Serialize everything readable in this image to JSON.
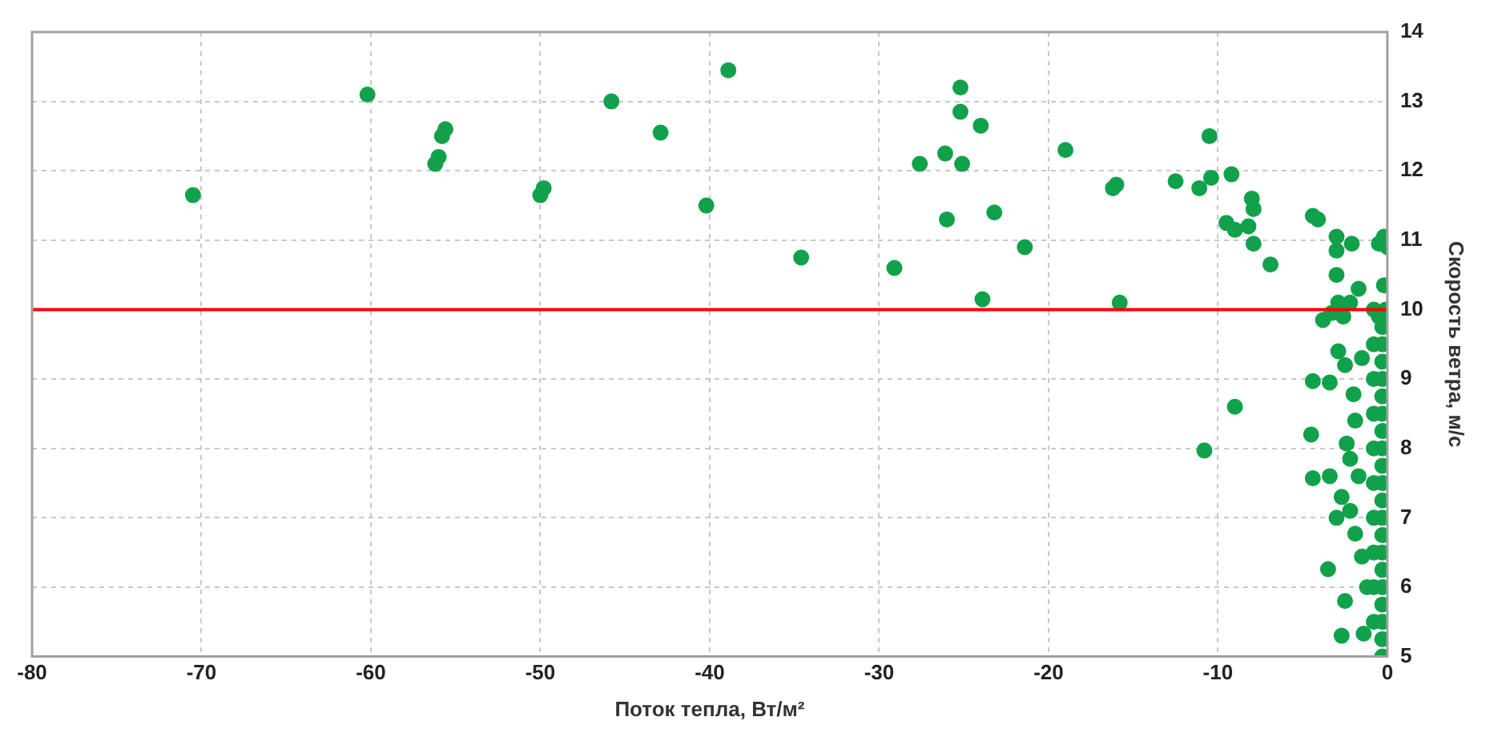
{
  "chart_data": {
    "type": "scatter",
    "xlabel": "Поток тепла, Вт/м²",
    "ylabel": "Скорость ветра, м/с",
    "xlim": [
      -80,
      0
    ],
    "xticks": [
      -80,
      -70,
      -60,
      -50,
      -40,
      -30,
      -20,
      -10,
      0
    ],
    "ylim": [
      5,
      14
    ],
    "yticks": [
      5,
      6,
      7,
      8,
      9,
      10,
      11,
      12,
      13,
      14
    ],
    "grid": true,
    "marker": "circle",
    "legend": false,
    "ref_lines": [
      {
        "axis": "y",
        "value": 10,
        "color": "#ff0000"
      }
    ],
    "series": [
      {
        "color": "#12a14b",
        "x": [
          -70.5,
          -60.2,
          -56.2,
          -56,
          -55.8,
          -55.6,
          -50,
          -49.8,
          -45.8,
          -42.9,
          -40.2,
          -38.9,
          -34.6,
          -29.1,
          -27.6,
          -26.1,
          -26,
          -25.2,
          -25.2,
          -25.1,
          -24,
          -23.9,
          -23.2,
          -21.4,
          -19,
          -16.2,
          -16,
          -15.8,
          -12.5,
          -11.1,
          -10.5,
          -10.4,
          -9.2,
          -9.5,
          -9,
          -8.2,
          -8,
          -7.9,
          -7.9,
          -6.9,
          -4.4,
          -4.1,
          -3,
          -3,
          -2.1,
          -3,
          -0.5,
          -0.2,
          0,
          -1.7,
          -0.2,
          -2.2,
          -2.9,
          -3.3,
          -3.8,
          -2.6,
          -0.8,
          -0.5,
          -10.8,
          -9,
          -4.4,
          -3.4,
          -4.5,
          -4.4,
          -3.4,
          -3.5,
          -2.5,
          -2.7,
          -1.4,
          -2.9,
          -2.5,
          -2,
          -1.9,
          -2.4,
          -2.2,
          -2.7,
          -3,
          -2.2,
          -1.5,
          -1.7,
          -1.9,
          -1.5,
          -1.2,
          -0.3,
          -0.3,
          -0.3,
          -0.3,
          -0.3,
          -0.3,
          -0.3,
          -0.3,
          -0.3,
          -0.3,
          -0.3,
          -0.3,
          -0.3,
          -0.3,
          -0.3,
          -0.3,
          -0.3,
          -0.3,
          -0.3,
          -0.3,
          -0.8,
          -0.8,
          -0.8,
          -0.8,
          -0.8,
          -0.8,
          -0.8,
          -0.8,
          -0.8,
          -0.1
        ],
        "values": [
          11.65,
          13.1,
          12.1,
          12.2,
          12.5,
          12.6,
          11.65,
          11.75,
          13,
          12.55,
          11.5,
          13.45,
          10.75,
          10.6,
          12.1,
          12.25,
          11.3,
          13.2,
          12.85,
          12.1,
          12.65,
          10.15,
          11.4,
          10.9,
          12.3,
          11.75,
          11.8,
          10.1,
          11.85,
          11.75,
          12.5,
          11.9,
          11.95,
          11.25,
          11.15,
          11.2,
          11.6,
          11.45,
          10.95,
          10.65,
          11.35,
          11.3,
          11.05,
          10.85,
          10.95,
          10.5,
          10.95,
          11.05,
          10.9,
          10.3,
          10.35,
          10.1,
          10.1,
          9.95,
          9.85,
          9.9,
          10,
          9.9,
          7.97,
          8.6,
          8.97,
          8.95,
          8.2,
          7.57,
          7.6,
          6.26,
          5.8,
          5.3,
          5.33,
          9.4,
          9.2,
          8.78,
          8.4,
          8.07,
          7.85,
          7.3,
          7,
          7.1,
          9.3,
          7.6,
          6.77,
          6.44,
          6,
          5,
          5.25,
          5.5,
          5.75,
          6,
          6.25,
          6.5,
          6.75,
          7,
          7.25,
          7.5,
          7.75,
          8,
          8.25,
          8.5,
          8.75,
          9,
          9.25,
          9.5,
          9.75,
          5.5,
          6,
          6.5,
          7,
          7.5,
          8,
          8.5,
          9,
          9.5,
          10
        ]
      }
    ]
  }
}
